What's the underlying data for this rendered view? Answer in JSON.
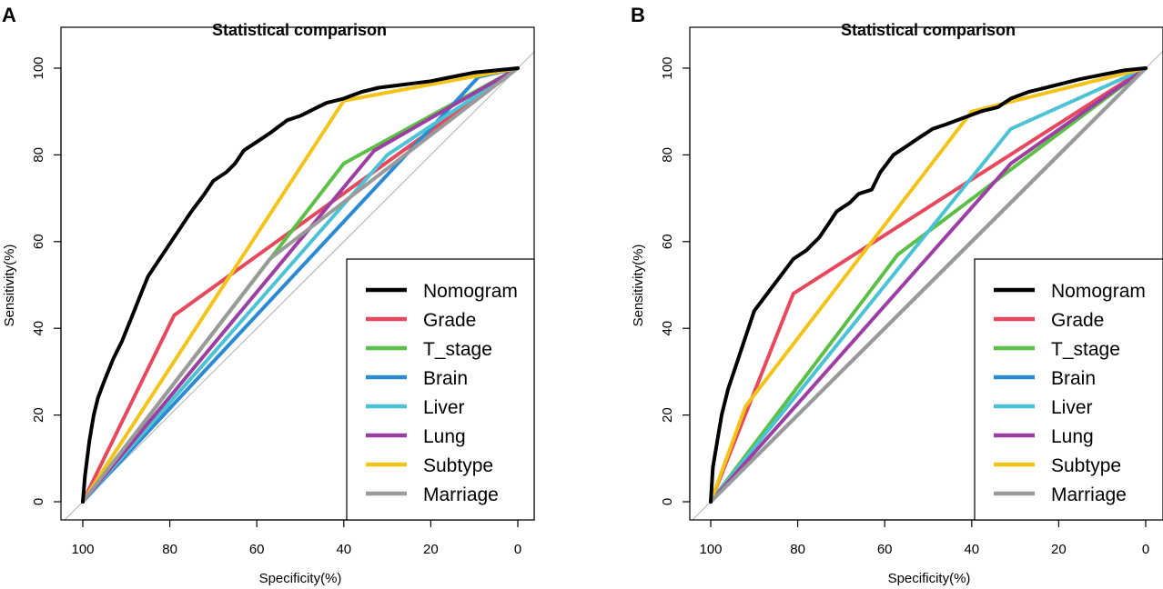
{
  "figure": {
    "colors": {
      "Nomogram": "#000000",
      "Grade": "#e6485e",
      "T_stage": "#5cbf46",
      "Brain": "#2b8ad1",
      "Liver": "#4cc3d5",
      "Lung": "#9b3fa3",
      "Subtype": "#f2c318",
      "Marriage": "#9a9a9a",
      "diagonal": "#b0b0b0"
    }
  },
  "chart_data": [
    {
      "panel_label": "A",
      "type": "line",
      "title": "Statistical comparison",
      "xlabel": "Specificity(%)",
      "ylabel": "Sensitivity(%)",
      "xlim": [
        100,
        0
      ],
      "ylim": [
        0,
        100
      ],
      "xticks": [
        "100",
        "80",
        "60",
        "40",
        "20",
        "0"
      ],
      "yticks": [
        "0",
        "20",
        "40",
        "60",
        "80",
        "100"
      ],
      "legend_position": "bottom-right",
      "reference_line": [
        [
          100,
          0
        ],
        [
          0,
          100
        ]
      ],
      "series": [
        {
          "name": "Nomogram",
          "points": [
            [
              100,
              0
            ],
            [
              99.5,
              6
            ],
            [
              98.5,
              14
            ],
            [
              97.5,
              20
            ],
            [
              96.5,
              24
            ],
            [
              95,
              28
            ],
            [
              93,
              33
            ],
            [
              91,
              37
            ],
            [
              89,
              42
            ],
            [
              87,
              47
            ],
            [
              85,
              52
            ],
            [
              83,
              55
            ],
            [
              81,
              58
            ],
            [
              79,
              61
            ],
            [
              77,
              64
            ],
            [
              75,
              67
            ],
            [
              72,
              71
            ],
            [
              70,
              74
            ],
            [
              67,
              76
            ],
            [
              65,
              78
            ],
            [
              63,
              81
            ],
            [
              60,
              83
            ],
            [
              57,
              85
            ],
            [
              55,
              86.5
            ],
            [
              53,
              88
            ],
            [
              50,
              89
            ],
            [
              47,
              90.5
            ],
            [
              44,
              92
            ],
            [
              40,
              93
            ],
            [
              36,
              94.5
            ],
            [
              32,
              95.5
            ],
            [
              28,
              96
            ],
            [
              24,
              96.5
            ],
            [
              20,
              97
            ],
            [
              15,
              98
            ],
            [
              10,
              99
            ],
            [
              5,
              99.5
            ],
            [
              0,
              100
            ]
          ]
        },
        {
          "name": "Grade",
          "points": [
            [
              100,
              0
            ],
            [
              79,
              43
            ],
            [
              0,
              100
            ]
          ]
        },
        {
          "name": "T_stage",
          "points": [
            [
              100,
              0
            ],
            [
              40,
              78
            ],
            [
              0,
              100
            ]
          ]
        },
        {
          "name": "Brain",
          "points": [
            [
              100,
              0
            ],
            [
              9,
              98
            ],
            [
              0,
              100
            ]
          ]
        },
        {
          "name": "Liver",
          "points": [
            [
              100,
              0
            ],
            [
              30,
              80
            ],
            [
              0,
              100
            ]
          ]
        },
        {
          "name": "Lung",
          "points": [
            [
              100,
              0
            ],
            [
              33,
              81
            ],
            [
              0,
              100
            ]
          ]
        },
        {
          "name": "Subtype",
          "points": [
            [
              100,
              0
            ],
            [
              40,
              92.5
            ],
            [
              0,
              100
            ]
          ]
        },
        {
          "name": "Marriage",
          "points": [
            [
              100,
              0
            ],
            [
              57,
              56
            ],
            [
              0,
              100
            ]
          ]
        }
      ]
    },
    {
      "panel_label": "B",
      "type": "line",
      "title": "Statistical comparison",
      "xlabel": "Specificity(%)",
      "ylabel": "Sensitivity(%)",
      "xlim": [
        100,
        0
      ],
      "ylim": [
        0,
        100
      ],
      "xticks": [
        "100",
        "80",
        "60",
        "40",
        "20",
        "0"
      ],
      "yticks": [
        "0",
        "20",
        "40",
        "60",
        "80",
        "100"
      ],
      "legend_position": "bottom-right",
      "reference_line": [
        [
          100,
          0
        ],
        [
          0,
          100
        ]
      ],
      "series": [
        {
          "name": "Nomogram",
          "points": [
            [
              100,
              0
            ],
            [
              99.5,
              8
            ],
            [
              98.5,
              14
            ],
            [
              97.5,
              20
            ],
            [
              96,
              26
            ],
            [
              94,
              32
            ],
            [
              92,
              38
            ],
            [
              90,
              44
            ],
            [
              87,
              48
            ],
            [
              84,
              52
            ],
            [
              81,
              56
            ],
            [
              78,
              58
            ],
            [
              75,
              61
            ],
            [
              73,
              64
            ],
            [
              71,
              67
            ],
            [
              68,
              69
            ],
            [
              66,
              71
            ],
            [
              63,
              72
            ],
            [
              61,
              76
            ],
            [
              58,
              80
            ],
            [
              55,
              82
            ],
            [
              52,
              84
            ],
            [
              49,
              86
            ],
            [
              46,
              87
            ],
            [
              42,
              88.5
            ],
            [
              38,
              90
            ],
            [
              34,
              91
            ],
            [
              31,
              93
            ],
            [
              27,
              94.5
            ],
            [
              23,
              95.5
            ],
            [
              19,
              96.5
            ],
            [
              15,
              97.5
            ],
            [
              10,
              98.5
            ],
            [
              5,
              99.5
            ],
            [
              0,
              100
            ]
          ]
        },
        {
          "name": "Grade",
          "points": [
            [
              100,
              0
            ],
            [
              81,
              48
            ],
            [
              0,
              100
            ]
          ]
        },
        {
          "name": "T_stage",
          "points": [
            [
              100,
              0
            ],
            [
              57,
              57
            ],
            [
              0,
              100
            ]
          ]
        },
        {
          "name": "Brain",
          "points": [
            [
              100,
              0
            ],
            [
              0,
              100
            ]
          ]
        },
        {
          "name": "Liver",
          "points": [
            [
              100,
              0
            ],
            [
              31,
              86
            ],
            [
              0,
              100
            ]
          ]
        },
        {
          "name": "Lung",
          "points": [
            [
              100,
              0
            ],
            [
              31,
              78
            ],
            [
              0,
              100
            ]
          ]
        },
        {
          "name": "Subtype",
          "points": [
            [
              100,
              0
            ],
            [
              92,
              22
            ],
            [
              40,
              90
            ],
            [
              0,
              100
            ]
          ]
        },
        {
          "name": "Marriage",
          "points": [
            [
              100,
              0
            ],
            [
              0,
              100
            ]
          ]
        }
      ]
    }
  ]
}
